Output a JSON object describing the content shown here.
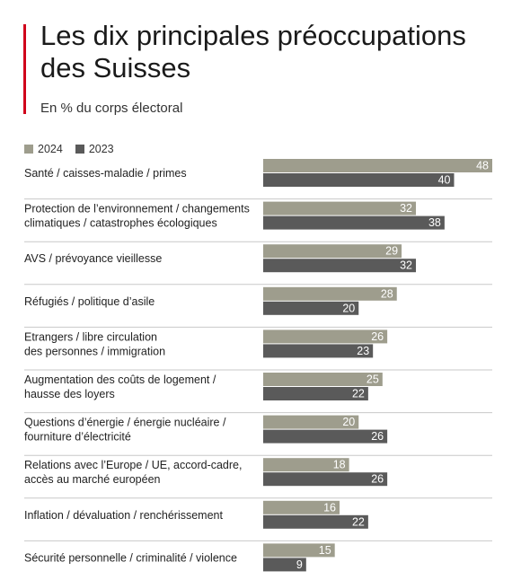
{
  "header": {
    "title": "Les dix principales préoccupations des Suisses",
    "subtitle": "En % du corps électoral"
  },
  "colors": {
    "accent": "#d0021b",
    "series_2024": "#9e9d8d",
    "series_2023": "#5a5a5a",
    "separator": "#c8c8c8"
  },
  "chart_data": {
    "type": "bar",
    "orientation": "horizontal",
    "categories": [
      [
        "Santé / caisses-maladie / primes"
      ],
      [
        "Protection de l’environnement / changements",
        "climatiques / catastrophes écologiques"
      ],
      [
        "AVS / prévoyance vieillesse"
      ],
      [
        "Réfugiés / politique d’asile"
      ],
      [
        "Etrangers / libre circulation",
        "des personnes / immigration"
      ],
      [
        "Augmentation des coûts de logement /",
        "hausse des loyers"
      ],
      [
        "Questions d’énergie / énergie nucléaire /",
        "fourniture d’électricité"
      ],
      [
        "Relations avec l’Europe / UE, accord-cadre,",
        "accès au marché européen"
      ],
      [
        "Inflation / dévaluation / renchérissement"
      ],
      [
        "Sécurité personnelle / criminalité / violence"
      ]
    ],
    "series": [
      {
        "name": "2024",
        "values": [
          48,
          32,
          29,
          28,
          26,
          25,
          20,
          18,
          16,
          15
        ]
      },
      {
        "name": "2023",
        "values": [
          40,
          38,
          32,
          20,
          23,
          22,
          26,
          26,
          22,
          9
        ]
      }
    ],
    "xlim": [
      0,
      48
    ],
    "legend_position": "top-left",
    "grid": false
  }
}
